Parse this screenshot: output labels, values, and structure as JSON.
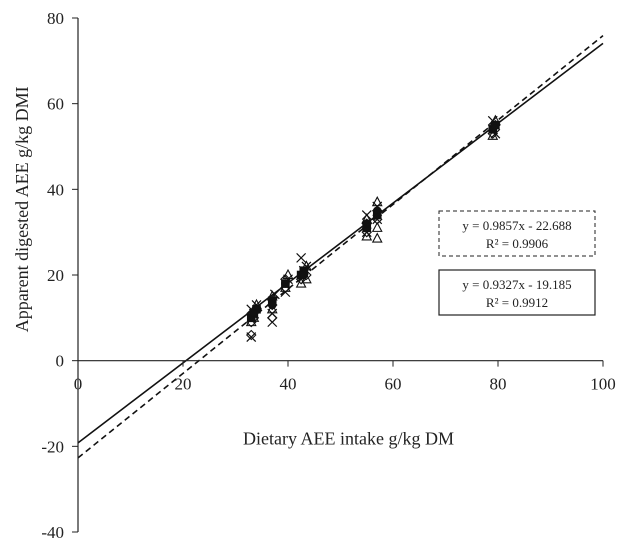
{
  "chart_data": {
    "type": "scatter",
    "xlabel": "Dietary AEE intake g/kg DM",
    "ylabel": "Apparent digested AEE g/kg DMI",
    "xlim": [
      0,
      100
    ],
    "ylim": [
      -40,
      80
    ],
    "x_ticks": [
      "0",
      "20",
      "40",
      "60",
      "80",
      "100"
    ],
    "y_ticks": [
      "-40",
      "-20",
      "0",
      "20",
      "40",
      "60",
      "80"
    ],
    "grid": false,
    "legend": "none",
    "series": [
      {
        "marker": "diamond",
        "points": [
          [
            33,
            6
          ],
          [
            33,
            9
          ],
          [
            33.5,
            10
          ],
          [
            34,
            12
          ],
          [
            37,
            10
          ],
          [
            37,
            13
          ],
          [
            39.5,
            17
          ],
          [
            39.5,
            19
          ],
          [
            42.5,
            19
          ],
          [
            43.5,
            20
          ],
          [
            55,
            30
          ],
          [
            55,
            32
          ],
          [
            57,
            33
          ],
          [
            57,
            35
          ],
          [
            79,
            53
          ],
          [
            79.5,
            55
          ]
        ]
      },
      {
        "marker": "square",
        "points": [
          [
            33,
            10
          ],
          [
            33.5,
            11
          ],
          [
            34,
            12
          ],
          [
            37,
            14
          ],
          [
            39.5,
            18
          ],
          [
            42.5,
            20
          ],
          [
            43,
            21
          ],
          [
            55,
            31
          ],
          [
            57,
            34
          ],
          [
            79,
            54
          ],
          [
            79.5,
            55
          ]
        ]
      },
      {
        "marker": "triangle",
        "points": [
          [
            33,
            9
          ],
          [
            33.5,
            10
          ],
          [
            34,
            13
          ],
          [
            37,
            12
          ],
          [
            37,
            15
          ],
          [
            39.5,
            17
          ],
          [
            40,
            20
          ],
          [
            42.5,
            18
          ],
          [
            43.5,
            19
          ],
          [
            43.5,
            22
          ],
          [
            55,
            29
          ],
          [
            55,
            33
          ],
          [
            57,
            28.5
          ],
          [
            57,
            31
          ],
          [
            57,
            37
          ],
          [
            79,
            52.5
          ],
          [
            79.5,
            56
          ]
        ]
      },
      {
        "marker": "x",
        "points": [
          [
            33,
            5.5
          ],
          [
            33,
            12
          ],
          [
            33.5,
            11
          ],
          [
            34,
            13
          ],
          [
            37,
            9
          ],
          [
            37,
            11
          ],
          [
            37.5,
            15.5
          ],
          [
            39.5,
            16
          ],
          [
            40,
            19
          ],
          [
            42.5,
            24
          ],
          [
            43,
            21
          ],
          [
            43.5,
            22
          ],
          [
            55,
            30
          ],
          [
            55,
            34
          ],
          [
            57,
            33
          ],
          [
            57,
            36
          ],
          [
            79,
            54
          ],
          [
            79,
            56
          ],
          [
            79.5,
            53
          ]
        ]
      },
      {
        "marker": "circle",
        "points": [
          [
            33.5,
            11
          ],
          [
            37,
            13
          ],
          [
            39.5,
            18
          ],
          [
            43,
            20
          ],
          [
            55,
            32
          ],
          [
            57,
            35
          ],
          [
            79.5,
            55
          ]
        ]
      }
    ],
    "fits": [
      {
        "style": "dashed",
        "slope": 0.9857,
        "intercept": -22.688,
        "equation": "y = 0.9857x - 22.688",
        "r2": "R² = 0.9906"
      },
      {
        "style": "solid",
        "slope": 0.9327,
        "intercept": -19.185,
        "equation": "y = 0.9327x - 19.185",
        "r2": "R² = 0.9912"
      }
    ]
  }
}
